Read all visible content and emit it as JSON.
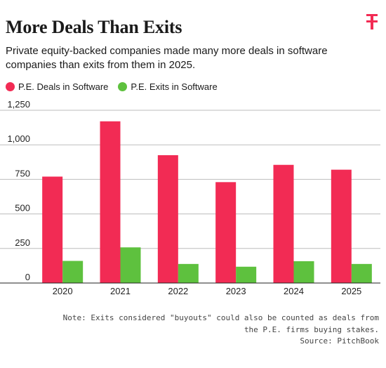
{
  "header": {
    "title": "More Deals Than Exits",
    "subtitle": "Private equity-backed companies made many more deals in software companies than exits from them in 2025.",
    "logo_icon": "publisher-logo-icon"
  },
  "colors": {
    "deals": "#f22b54",
    "exits": "#5ec13e",
    "logo": "#f22b54"
  },
  "chart_data": {
    "type": "bar",
    "categories": [
      "2020",
      "2021",
      "2022",
      "2023",
      "2024",
      "2025"
    ],
    "series": [
      {
        "name": "P.E. Deals in Software",
        "values": [
          770,
          1170,
          925,
          730,
          855,
          820
        ]
      },
      {
        "name": "P.E. Exits in Software",
        "values": [
          160,
          258,
          138,
          118,
          158,
          138
        ]
      }
    ],
    "ylim": [
      0,
      1250
    ],
    "yticks": [
      0,
      250,
      500,
      750,
      1000,
      1250
    ],
    "ytick_labels": [
      "0",
      "250",
      "500",
      "750",
      "1,000",
      "1,250"
    ],
    "grid": true,
    "legend_position": "top-left"
  },
  "footer": {
    "note": "Note: Exits considered \"buyouts\" could also be counted as deals from\nthe P.E. firms buying stakes.",
    "source": "Source: PitchBook"
  }
}
